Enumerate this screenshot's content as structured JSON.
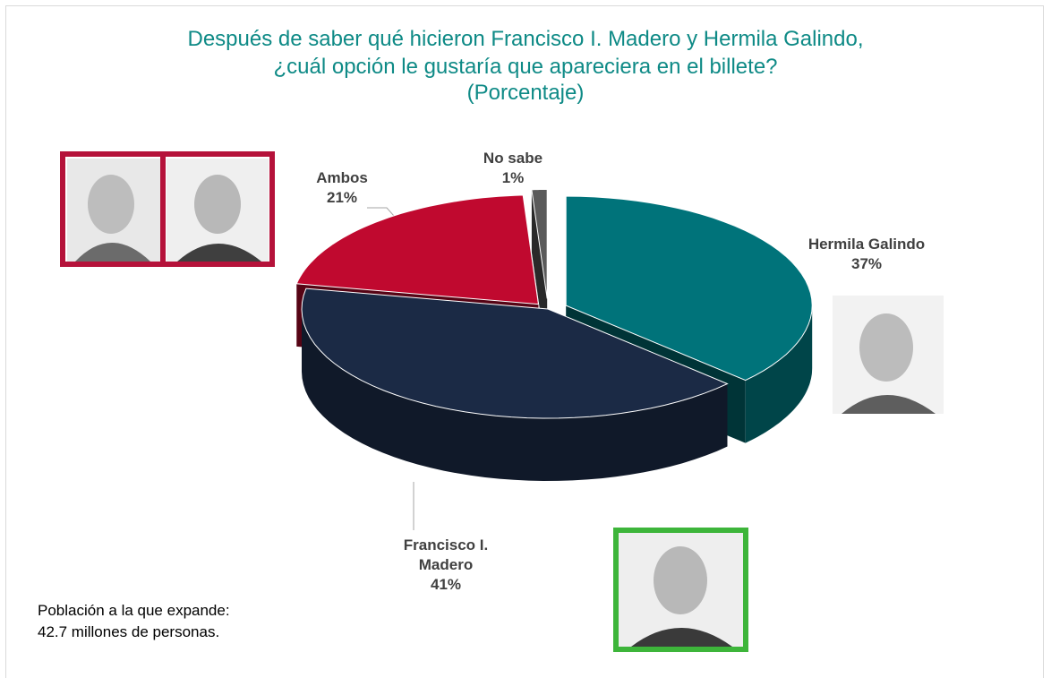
{
  "chart_data": {
    "type": "pie3d",
    "title": "Después de saber qué hicieron Francisco I. Madero y Hermila Galindo, ¿cuál opción le gustaría que apareciera en el billete?",
    "subtitle": "(Porcentaje)",
    "categories": [
      "Hermila Galindo",
      "Francisco I. Madero",
      "Ambos",
      "No sabe"
    ],
    "values": [
      37,
      41,
      21,
      1
    ],
    "value_labels": [
      "37%",
      "41%",
      "21%",
      "1%"
    ],
    "colors": [
      "#00737a",
      "#1b2a45",
      "#c0092f",
      "#5a5a5a"
    ],
    "annotations": [
      "Población a la que expande:",
      "42.7 millones de personas."
    ]
  }
}
